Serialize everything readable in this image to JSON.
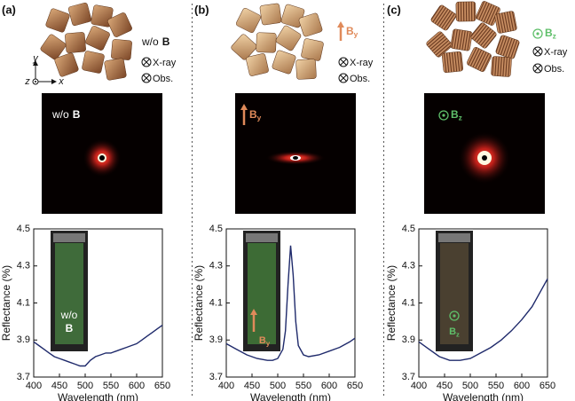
{
  "panels": [
    {
      "label": "(a)",
      "field": {
        "pre": "w/o",
        "main": "B"
      },
      "beam": "X-ray",
      "observer": "Obs.",
      "axes": [
        "y",
        "z",
        "x"
      ],
      "pattern_field": {
        "pre": "w/o",
        "main": "B"
      }
    },
    {
      "label": "(b)",
      "field": {
        "main": "B",
        "sub": "y"
      },
      "beam": "X-ray",
      "observer": "Obs.",
      "pattern_field": {
        "main": "B",
        "sub": "y"
      }
    },
    {
      "label": "(c)",
      "field": {
        "main": "B",
        "sub": "z"
      },
      "beam": "X-ray",
      "observer": "Obs.",
      "pattern_field": {
        "main": "B",
        "sub": "z"
      }
    }
  ],
  "chart_data": [
    {
      "type": "line",
      "xlabel": "Wavelength (nm)",
      "ylabel": "Reflectance (%)",
      "color": "#1f2a6b",
      "annotation": {
        "pre": "w/o",
        "main": "B"
      },
      "x": [
        400,
        410,
        420,
        430,
        440,
        450,
        460,
        470,
        480,
        490,
        500,
        510,
        520,
        530,
        540,
        550,
        560,
        570,
        580,
        590,
        600,
        610,
        620,
        630,
        640,
        650
      ],
      "values": [
        3.89,
        3.87,
        3.85,
        3.83,
        3.81,
        3.8,
        3.79,
        3.78,
        3.77,
        3.76,
        3.76,
        3.79,
        3.81,
        3.82,
        3.83,
        3.83,
        3.84,
        3.85,
        3.86,
        3.87,
        3.88,
        3.9,
        3.92,
        3.94,
        3.96,
        3.98
      ],
      "xlim": [
        400,
        650
      ],
      "ylim": [
        3.7,
        4.5
      ],
      "xticks": [
        400,
        450,
        500,
        550,
        600,
        650
      ],
      "yticks": [
        3.7,
        3.9,
        4.1,
        4.3,
        4.5
      ]
    },
    {
      "type": "line",
      "xlabel": "Wavelength (nm)",
      "ylabel": "Reflectance (%)",
      "color": "#1f2a6b",
      "annotation": {
        "main": "B",
        "sub": "y"
      },
      "x": [
        400,
        420,
        440,
        460,
        480,
        490,
        500,
        510,
        515,
        520,
        525,
        530,
        535,
        540,
        550,
        560,
        580,
        600,
        620,
        640,
        650
      ],
      "values": [
        3.88,
        3.85,
        3.82,
        3.8,
        3.79,
        3.79,
        3.8,
        3.85,
        3.95,
        4.2,
        4.41,
        4.25,
        4.0,
        3.87,
        3.82,
        3.81,
        3.82,
        3.84,
        3.86,
        3.89,
        3.91
      ],
      "xlim": [
        400,
        650
      ],
      "ylim": [
        3.7,
        4.5
      ],
      "xticks": [
        400,
        450,
        500,
        550,
        600,
        650
      ],
      "yticks": [
        3.7,
        3.9,
        4.1,
        4.3,
        4.5
      ]
    },
    {
      "type": "line",
      "xlabel": "Wavelength (nm)",
      "ylabel": "Reflectance (%)",
      "color": "#1f2a6b",
      "annotation": {
        "main": "B",
        "sub": "z"
      },
      "x": [
        400,
        420,
        440,
        460,
        480,
        500,
        520,
        540,
        560,
        580,
        600,
        620,
        640,
        650
      ],
      "values": [
        3.89,
        3.85,
        3.81,
        3.79,
        3.79,
        3.8,
        3.83,
        3.86,
        3.9,
        3.95,
        4.01,
        4.08,
        4.18,
        4.23
      ],
      "xlim": [
        400,
        650
      ],
      "ylim": [
        3.7,
        4.5
      ],
      "xticks": [
        400,
        450,
        500,
        550,
        600,
        650
      ],
      "yticks": [
        3.7,
        3.9,
        4.1,
        4.3,
        4.5
      ]
    }
  ]
}
